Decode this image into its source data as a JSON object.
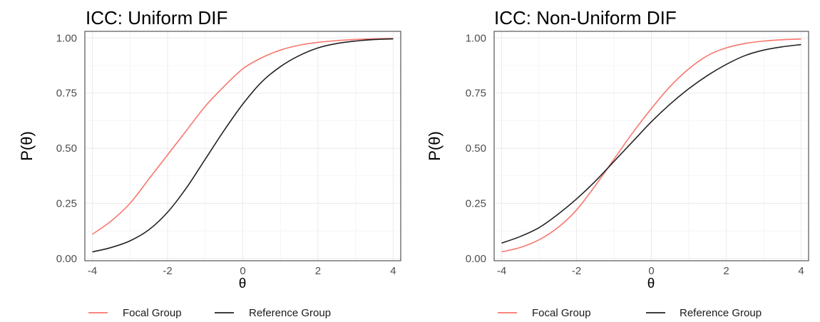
{
  "colors": {
    "focal": "#f8766d",
    "reference": "#222222",
    "grid_major": "#ebebeb",
    "grid_minor": "#f5f5f5",
    "panel_border": "#333333"
  },
  "chart_data": [
    {
      "type": "line",
      "title": "ICC: Uniform DIF",
      "xlabel": "θ",
      "ylabel": "P(θ)",
      "xlim": [
        -4.2,
        4.2
      ],
      "ylim": [
        -0.01,
        1.03
      ],
      "x_ticks": [
        -4,
        -2,
        0,
        2,
        4
      ],
      "x_tick_labels": [
        "-4",
        "-2",
        "0",
        "2",
        "4"
      ],
      "y_ticks": [
        0,
        0.25,
        0.5,
        0.75,
        1
      ],
      "y_tick_labels": [
        "0.00",
        "0.25",
        "0.50",
        "0.75",
        "1.00"
      ],
      "grid": true,
      "legend_position": "bottom",
      "series": [
        {
          "name": "Focal Group",
          "color_key": "focal",
          "x": [
            -4,
            -3.5,
            -3,
            -2.5,
            -2,
            -1.5,
            -1,
            -0.5,
            0,
            0.5,
            1,
            1.5,
            2,
            2.5,
            3,
            3.5,
            4
          ],
          "y": [
            0.11,
            0.17,
            0.25,
            0.36,
            0.47,
            0.58,
            0.69,
            0.78,
            0.86,
            0.91,
            0.945,
            0.967,
            0.98,
            0.988,
            0.993,
            0.996,
            0.998
          ]
        },
        {
          "name": "Reference Group",
          "color_key": "reference",
          "x": [
            -4,
            -3.5,
            -3,
            -2.5,
            -2,
            -1.5,
            -1,
            -0.5,
            0,
            0.5,
            1,
            1.5,
            2,
            2.5,
            3,
            3.5,
            4
          ],
          "y": [
            0.03,
            0.05,
            0.08,
            0.13,
            0.21,
            0.32,
            0.45,
            0.58,
            0.7,
            0.8,
            0.87,
            0.92,
            0.955,
            0.975,
            0.986,
            0.993,
            0.996
          ]
        }
      ]
    },
    {
      "type": "line",
      "title": "ICC: Non-Uniform DIF",
      "xlabel": "θ",
      "ylabel": "P(θ)",
      "xlim": [
        -4.2,
        4.2
      ],
      "ylim": [
        -0.01,
        1.03
      ],
      "x_ticks": [
        -4,
        -2,
        0,
        2,
        4
      ],
      "x_tick_labels": [
        "-4",
        "-2",
        "0",
        "2",
        "4"
      ],
      "y_ticks": [
        0,
        0.25,
        0.5,
        0.75,
        1
      ],
      "y_tick_labels": [
        "0.00",
        "0.25",
        "0.50",
        "0.75",
        "1.00"
      ],
      "grid": true,
      "legend_position": "bottom",
      "series": [
        {
          "name": "Focal Group",
          "color_key": "focal",
          "x": [
            -4,
            -3.5,
            -3,
            -2.5,
            -2,
            -1.5,
            -1,
            -0.5,
            0,
            0.5,
            1,
            1.5,
            2,
            2.5,
            3,
            3.5,
            4
          ],
          "y": [
            0.03,
            0.05,
            0.085,
            0.14,
            0.22,
            0.33,
            0.45,
            0.57,
            0.68,
            0.78,
            0.86,
            0.92,
            0.955,
            0.975,
            0.986,
            0.992,
            0.995
          ]
        },
        {
          "name": "Reference Group",
          "color_key": "reference",
          "x": [
            -4,
            -3.5,
            -3,
            -2.5,
            -2,
            -1.5,
            -1,
            -0.5,
            0,
            0.5,
            1,
            1.5,
            2,
            2.5,
            3,
            3.5,
            4
          ],
          "y": [
            0.07,
            0.1,
            0.14,
            0.2,
            0.27,
            0.35,
            0.44,
            0.53,
            0.62,
            0.7,
            0.77,
            0.83,
            0.88,
            0.92,
            0.945,
            0.96,
            0.97
          ]
        }
      ]
    }
  ]
}
